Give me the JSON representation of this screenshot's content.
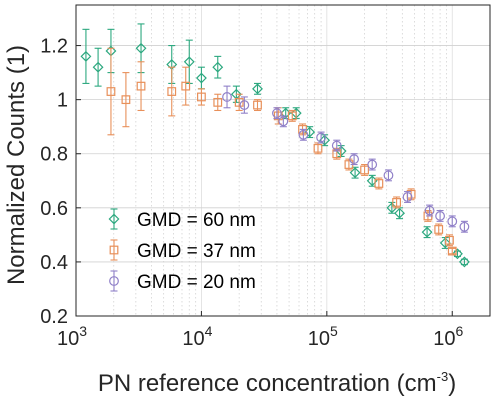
{
  "chart_data": {
    "type": "scatter",
    "xscale": "log",
    "xlim": [
      1000,
      2000000
    ],
    "ylim": [
      0.2,
      1.35
    ],
    "grid": true,
    "xlabel": "PN reference concentration (cm",
    "xlabel_sup": "-3",
    "xlabel_suffix": ")",
    "ylabel": "Normalized Counts (1)",
    "xticks": [
      1000,
      10000,
      100000,
      1000000
    ],
    "xtick_base": "10",
    "xtick_exponents": [
      "3",
      "4",
      "5",
      "6"
    ],
    "yticks": [
      0.2,
      0.4,
      0.6,
      0.8,
      1.0,
      1.2
    ],
    "ytick_labels": [
      "0.2",
      "0.4",
      "0.6",
      "0.8",
      "1",
      "1.2"
    ],
    "legend_position": "lower-left",
    "series": [
      {
        "name": "GMD = 60 nm",
        "marker": "diamond",
        "color": "#2ca87f",
        "points": [
          {
            "x": 1200,
            "y": 1.16,
            "err": 0.1
          },
          {
            "x": 1500,
            "y": 1.12,
            "err": 0.07
          },
          {
            "x": 1900,
            "y": 1.18,
            "err": 0.08
          },
          {
            "x": 3300,
            "y": 1.19,
            "err": 0.09
          },
          {
            "x": 5800,
            "y": 1.13,
            "err": 0.07
          },
          {
            "x": 8000,
            "y": 1.14,
            "err": 0.08
          },
          {
            "x": 10000,
            "y": 1.08,
            "err": 0.04
          },
          {
            "x": 13500,
            "y": 1.12,
            "err": 0.04
          },
          {
            "x": 19000,
            "y": 1.02,
            "err": 0.03
          },
          {
            "x": 28000,
            "y": 1.04,
            "err": 0.02
          },
          {
            "x": 47000,
            "y": 0.95,
            "err": 0.02
          },
          {
            "x": 57000,
            "y": 0.95,
            "err": 0.02
          },
          {
            "x": 73000,
            "y": 0.88,
            "err": 0.02
          },
          {
            "x": 96000,
            "y": 0.85,
            "err": 0.02
          },
          {
            "x": 130000,
            "y": 0.81,
            "err": 0.02
          },
          {
            "x": 168000,
            "y": 0.73,
            "err": 0.02
          },
          {
            "x": 230000,
            "y": 0.7,
            "err": 0.02
          },
          {
            "x": 330000,
            "y": 0.6,
            "err": 0.02
          },
          {
            "x": 380000,
            "y": 0.58,
            "err": 0.02
          },
          {
            "x": 630000,
            "y": 0.51,
            "err": 0.02
          },
          {
            "x": 880000,
            "y": 0.47,
            "err": 0.02
          },
          {
            "x": 1100000,
            "y": 0.43,
            "err": 0.01
          },
          {
            "x": 1250000,
            "y": 0.4,
            "err": 0.01
          }
        ]
      },
      {
        "name": "GMD = 37 nm",
        "marker": "square",
        "color": "#e8905a",
        "points": [
          {
            "x": 1900,
            "y": 1.03,
            "err": 0.16
          },
          {
            "x": 2500,
            "y": 1.0,
            "err": 0.1
          },
          {
            "x": 3300,
            "y": 1.05,
            "err": 0.09
          },
          {
            "x": 5800,
            "y": 1.03,
            "err": 0.09
          },
          {
            "x": 7500,
            "y": 1.05,
            "err": 0.07
          },
          {
            "x": 10000,
            "y": 1.01,
            "err": 0.03
          },
          {
            "x": 13500,
            "y": 0.99,
            "err": 0.03
          },
          {
            "x": 20000,
            "y": 0.99,
            "err": 0.03
          },
          {
            "x": 28000,
            "y": 0.98,
            "err": 0.02
          },
          {
            "x": 41000,
            "y": 0.94,
            "err": 0.03
          },
          {
            "x": 53000,
            "y": 0.94,
            "err": 0.02
          },
          {
            "x": 64000,
            "y": 0.89,
            "err": 0.02
          },
          {
            "x": 85000,
            "y": 0.82,
            "err": 0.02
          },
          {
            "x": 120000,
            "y": 0.8,
            "err": 0.02
          },
          {
            "x": 150000,
            "y": 0.76,
            "err": 0.02
          },
          {
            "x": 200000,
            "y": 0.74,
            "err": 0.02
          },
          {
            "x": 260000,
            "y": 0.69,
            "err": 0.02
          },
          {
            "x": 360000,
            "y": 0.62,
            "err": 0.02
          },
          {
            "x": 470000,
            "y": 0.65,
            "err": 0.02
          },
          {
            "x": 640000,
            "y": 0.57,
            "err": 0.02
          },
          {
            "x": 780000,
            "y": 0.52,
            "err": 0.02
          },
          {
            "x": 950000,
            "y": 0.48,
            "err": 0.02
          },
          {
            "x": 1000000,
            "y": 0.44,
            "err": 0.01
          }
        ]
      },
      {
        "name": "GMD = 20 nm",
        "marker": "circle",
        "color": "#9080c8",
        "points": [
          {
            "x": 16000,
            "y": 1.01,
            "err": 0.04
          },
          {
            "x": 22000,
            "y": 0.98,
            "err": 0.03
          },
          {
            "x": 40000,
            "y": 0.95,
            "err": 0.02
          },
          {
            "x": 45000,
            "y": 0.92,
            "err": 0.02
          },
          {
            "x": 65000,
            "y": 0.87,
            "err": 0.02
          },
          {
            "x": 90000,
            "y": 0.86,
            "err": 0.02
          },
          {
            "x": 120000,
            "y": 0.83,
            "err": 0.02
          },
          {
            "x": 165000,
            "y": 0.78,
            "err": 0.02
          },
          {
            "x": 230000,
            "y": 0.76,
            "err": 0.02
          },
          {
            "x": 310000,
            "y": 0.72,
            "err": 0.02
          },
          {
            "x": 440000,
            "y": 0.64,
            "err": 0.02
          },
          {
            "x": 660000,
            "y": 0.59,
            "err": 0.02
          },
          {
            "x": 800000,
            "y": 0.57,
            "err": 0.02
          },
          {
            "x": 1000000,
            "y": 0.55,
            "err": 0.02
          },
          {
            "x": 1250000,
            "y": 0.53,
            "err": 0.02
          }
        ]
      }
    ]
  }
}
